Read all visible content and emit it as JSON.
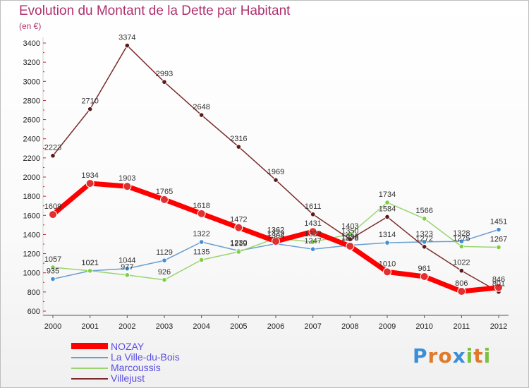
{
  "chart_data": {
    "type": "line",
    "title": "Evolution du Montant de la Dette par Habitant",
    "subtitle": "(en €)",
    "x": [
      "2000",
      "2001",
      "2002",
      "2003",
      "2004",
      "2005",
      "2006",
      "2007",
      "2008",
      "2009",
      "2010",
      "2011",
      "2012"
    ],
    "ylim": [
      600,
      3400
    ],
    "yticks": [
      600,
      800,
      1000,
      1200,
      1400,
      1600,
      1800,
      2000,
      2200,
      2400,
      2600,
      2800,
      3000,
      3200,
      3400
    ],
    "grid": false,
    "legend_position": "bottom-left",
    "series": [
      {
        "name": "NOZAY",
        "color": "#ff0000",
        "marker": "#e03030",
        "width": 7,
        "values": [
          1609,
          1934,
          1903,
          1765,
          1618,
          1472,
          1329,
          1431,
          1278,
          1010,
          961,
          806,
          846
        ]
      },
      {
        "name": "La Ville-du-Bois",
        "color": "#6a9fd0",
        "marker": "#3f8fd8",
        "width": 1.5,
        "values": [
          935,
          1021,
          1044,
          1129,
          1322,
          1230,
          1304,
          1247,
          1288,
          1314,
          1323,
          1328,
          1451
        ]
      },
      {
        "name": "Marcoussis",
        "color": "#9ad470",
        "marker": "#7bd040",
        "width": 1.5,
        "values": [
          1057,
          1021,
          977,
          926,
          1135,
          1219,
          1362,
          1322,
          1403,
          1734,
          1566,
          1275,
          1267
        ]
      },
      {
        "name": "Villejust",
        "color": "#7a2a2a",
        "marker": "#5a1a1a",
        "width": 1.5,
        "values": [
          2223,
          2710,
          3374,
          2993,
          2648,
          2316,
          1969,
          1611,
          1350,
          1584,
          1272,
          1022,
          801
        ]
      }
    ]
  },
  "brand": {
    "text": "Proxiti",
    "letters": [
      "P",
      "r",
      "o",
      "x",
      "i",
      "t",
      "i"
    ],
    "colors": [
      "#3a8fd8",
      "#e07a2a",
      "#e07a2a",
      "#3a8fd8",
      "#7bc043",
      "#e07a2a",
      "#7bc043"
    ]
  }
}
